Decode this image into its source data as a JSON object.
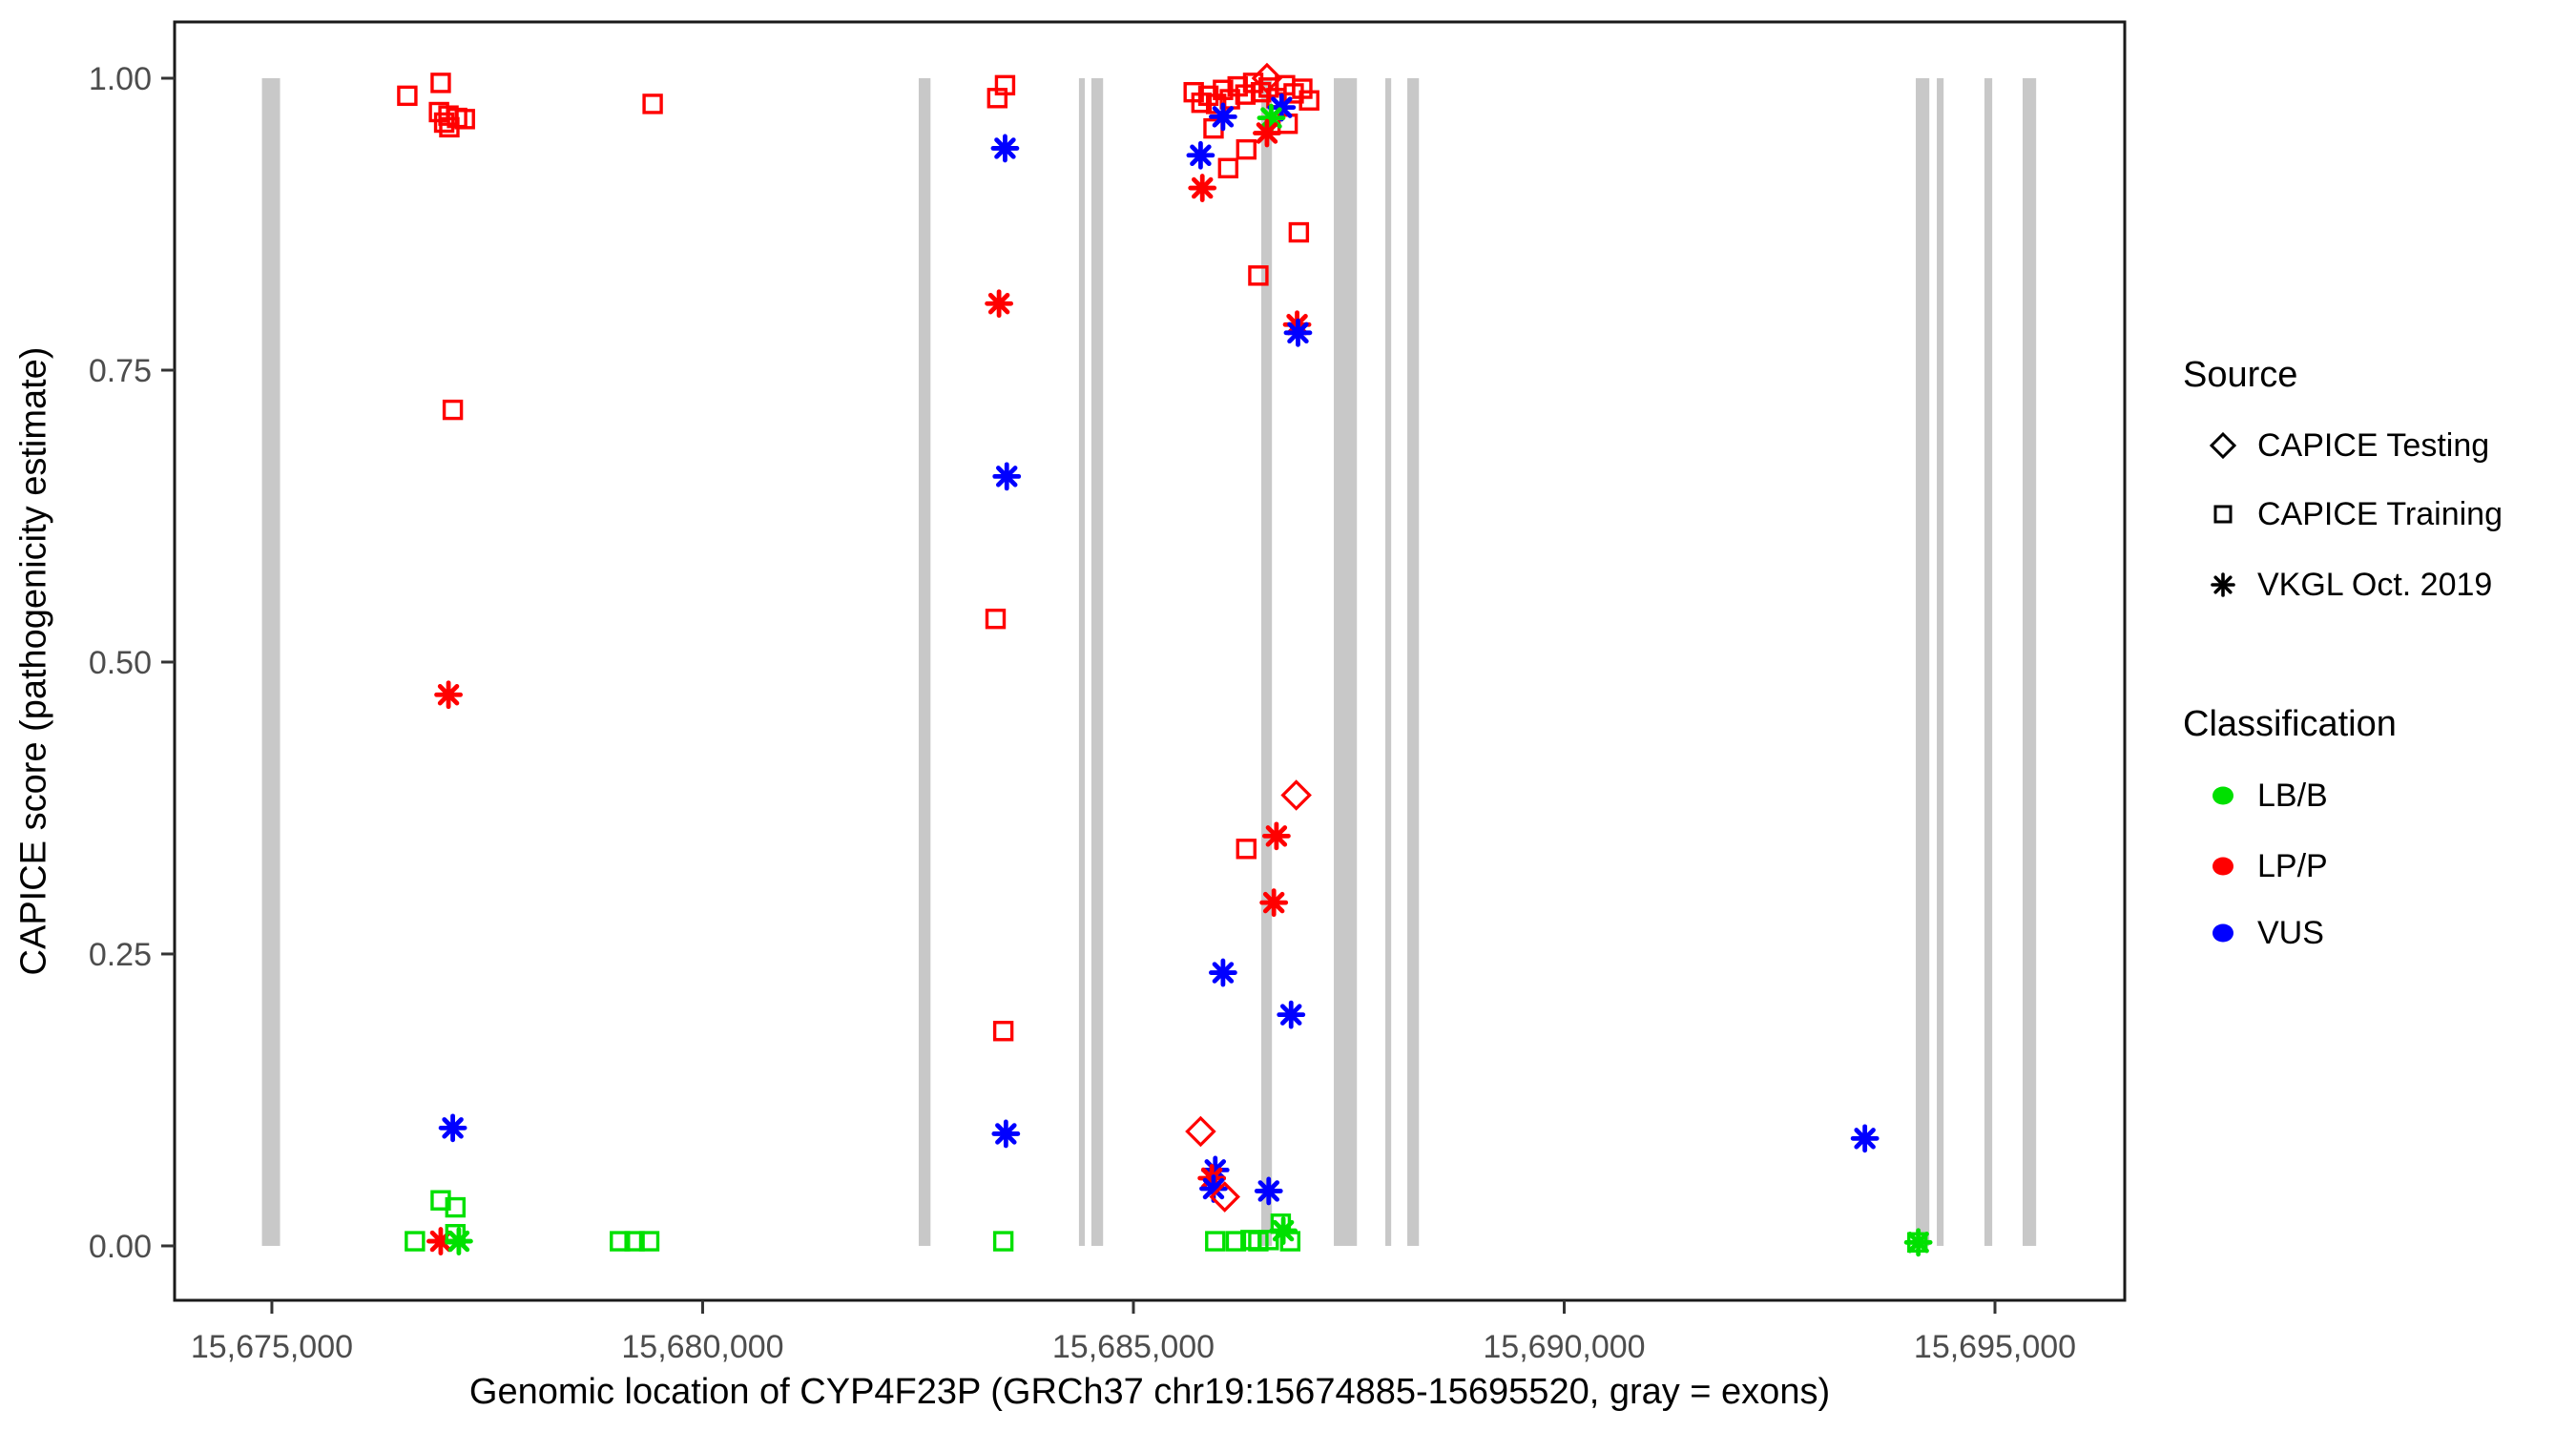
{
  "chart_data": {
    "type": "scatter",
    "xlabel": "Genomic location of CYP4F23P (GRCh37 chr19:15674885-15695520, gray = exons)",
    "ylabel": "CAPICE score (pathogenicity estimate)",
    "x_domain": [
      15673871,
      15696506
    ],
    "y_domain": [
      -0.0466,
      1.0482
    ],
    "x_ticks": [
      {
        "value": 15675000,
        "label": "15,675,000"
      },
      {
        "value": 15680000,
        "label": "15,680,000"
      },
      {
        "value": 15685000,
        "label": "15,685,000"
      },
      {
        "value": 15690000,
        "label": "15,690,000"
      },
      {
        "value": 15695000,
        "label": "15,695,000"
      }
    ],
    "y_ticks": [
      {
        "value": 0.0,
        "label": "0.00"
      },
      {
        "value": 0.25,
        "label": "0.25"
      },
      {
        "value": 0.5,
        "label": "0.50"
      },
      {
        "value": 0.75,
        "label": "0.75"
      },
      {
        "value": 1.0,
        "label": "1.00"
      }
    ],
    "exon_color": "#C8C8C8",
    "exon_y_span": [
      0,
      1
    ],
    "exons": [
      [
        15674885,
        15675095
      ],
      [
        15682508,
        15682645
      ],
      [
        15684368,
        15684436
      ],
      [
        15684512,
        15684648
      ],
      [
        15686484,
        15686608
      ],
      [
        15687326,
        15687594
      ],
      [
        15687924,
        15687992
      ],
      [
        15688179,
        15688314
      ],
      [
        15694081,
        15694238
      ],
      [
        15694325,
        15694404
      ],
      [
        15694878,
        15694968
      ],
      [
        15695321,
        15695478
      ]
    ],
    "class_colors": {
      "LB/B": "#00E000",
      "LP/P": "#FF0000",
      "VUS": "#0000FF"
    },
    "source_shapes": {
      "CAPICE Testing": "diamond",
      "CAPICE Training": "square",
      "VKGL Oct. 2019": "asterisk"
    },
    "points": [
      {
        "x": 15676572,
        "y": 0.985,
        "source": "CAPICE Training",
        "class": "LP/P"
      },
      {
        "x": 15676960,
        "y": 0.996,
        "source": "CAPICE Training",
        "class": "LP/P"
      },
      {
        "x": 15676940,
        "y": 0.971,
        "source": "CAPICE Training",
        "class": "LP/P"
      },
      {
        "x": 15677050,
        "y": 0.968,
        "source": "CAPICE Training",
        "class": "LP/P"
      },
      {
        "x": 15677150,
        "y": 0.966,
        "source": "CAPICE Training",
        "class": "LP/P"
      },
      {
        "x": 15677060,
        "y": 0.958,
        "source": "CAPICE Training",
        "class": "LP/P"
      },
      {
        "x": 15677240,
        "y": 0.965,
        "source": "CAPICE Training",
        "class": "LP/P"
      },
      {
        "x": 15677000,
        "y": 0.962,
        "source": "CAPICE Training",
        "class": "LP/P"
      },
      {
        "x": 15679420,
        "y": 0.978,
        "source": "CAPICE Training",
        "class": "LP/P"
      },
      {
        "x": 15677100,
        "y": 0.716,
        "source": "CAPICE Training",
        "class": "LP/P"
      },
      {
        "x": 15677050,
        "y": 0.472,
        "source": "VKGL Oct. 2019",
        "class": "LP/P"
      },
      {
        "x": 15677100,
        "y": 0.101,
        "source": "VKGL Oct. 2019",
        "class": "VUS"
      },
      {
        "x": 15676960,
        "y": 0.039,
        "source": "CAPICE Training",
        "class": "LB/B"
      },
      {
        "x": 15677130,
        "y": 0.033,
        "source": "CAPICE Training",
        "class": "LB/B"
      },
      {
        "x": 15676660,
        "y": 0.004,
        "source": "CAPICE Training",
        "class": "LB/B"
      },
      {
        "x": 15676960,
        "y": 0.004,
        "source": "VKGL Oct. 2019",
        "class": "LP/P"
      },
      {
        "x": 15677130,
        "y": 0.01,
        "source": "CAPICE Training",
        "class": "LB/B"
      },
      {
        "x": 15677170,
        "y": 0.004,
        "source": "VKGL Oct. 2019",
        "class": "LB/B"
      },
      {
        "x": 15679040,
        "y": 0.004,
        "source": "CAPICE Training",
        "class": "LB/B"
      },
      {
        "x": 15679210,
        "y": 0.004,
        "source": "CAPICE Training",
        "class": "LB/B"
      },
      {
        "x": 15679380,
        "y": 0.004,
        "source": "CAPICE Training",
        "class": "LB/B"
      },
      {
        "x": 15683420,
        "y": 0.983,
        "source": "CAPICE Training",
        "class": "LP/P"
      },
      {
        "x": 15683510,
        "y": 0.994,
        "source": "CAPICE Training",
        "class": "LP/P"
      },
      {
        "x": 15683510,
        "y": 0.94,
        "source": "VKGL Oct. 2019",
        "class": "VUS"
      },
      {
        "x": 15683440,
        "y": 0.807,
        "source": "VKGL Oct. 2019",
        "class": "LP/P"
      },
      {
        "x": 15683530,
        "y": 0.659,
        "source": "VKGL Oct. 2019",
        "class": "VUS"
      },
      {
        "x": 15683400,
        "y": 0.537,
        "source": "CAPICE Training",
        "class": "LP/P"
      },
      {
        "x": 15683490,
        "y": 0.184,
        "source": "CAPICE Training",
        "class": "LP/P"
      },
      {
        "x": 15683520,
        "y": 0.096,
        "source": "VKGL Oct. 2019",
        "class": "VUS"
      },
      {
        "x": 15683490,
        "y": 0.004,
        "source": "CAPICE Training",
        "class": "LB/B"
      },
      {
        "x": 15685700,
        "y": 0.988,
        "source": "CAPICE Training",
        "class": "LP/P"
      },
      {
        "x": 15685790,
        "y": 0.979,
        "source": "CAPICE Training",
        "class": "LP/P"
      },
      {
        "x": 15685870,
        "y": 0.985,
        "source": "CAPICE Training",
        "class": "LP/P"
      },
      {
        "x": 15685960,
        "y": 0.978,
        "source": "CAPICE Training",
        "class": "LP/P"
      },
      {
        "x": 15686040,
        "y": 0.99,
        "source": "CAPICE Training",
        "class": "LP/P"
      },
      {
        "x": 15686120,
        "y": 0.982,
        "source": "CAPICE Training",
        "class": "LP/P"
      },
      {
        "x": 15686210,
        "y": 0.993,
        "source": "CAPICE Training",
        "class": "LP/P"
      },
      {
        "x": 15686300,
        "y": 0.986,
        "source": "CAPICE Training",
        "class": "LP/P"
      },
      {
        "x": 15686390,
        "y": 0.996,
        "source": "CAPICE Training",
        "class": "LP/P"
      },
      {
        "x": 15686480,
        "y": 0.988,
        "source": "CAPICE Training",
        "class": "LP/P"
      },
      {
        "x": 15686570,
        "y": 0.992,
        "source": "CAPICE Training",
        "class": "LP/P"
      },
      {
        "x": 15686660,
        "y": 0.983,
        "source": "CAPICE Training",
        "class": "LP/P"
      },
      {
        "x": 15686760,
        "y": 0.994,
        "source": "CAPICE Training",
        "class": "LP/P"
      },
      {
        "x": 15686860,
        "y": 0.987,
        "source": "CAPICE Training",
        "class": "LP/P"
      },
      {
        "x": 15686960,
        "y": 0.991,
        "source": "CAPICE Training",
        "class": "LP/P"
      },
      {
        "x": 15687040,
        "y": 0.981,
        "source": "CAPICE Training",
        "class": "LP/P"
      },
      {
        "x": 15686550,
        "y": 1.0,
        "source": "CAPICE Testing",
        "class": "LP/P"
      },
      {
        "x": 15685930,
        "y": 0.957,
        "source": "CAPICE Training",
        "class": "LP/P"
      },
      {
        "x": 15686790,
        "y": 0.961,
        "source": "CAPICE Training",
        "class": "LP/P"
      },
      {
        "x": 15686310,
        "y": 0.939,
        "source": "CAPICE Training",
        "class": "LP/P"
      },
      {
        "x": 15686100,
        "y": 0.923,
        "source": "CAPICE Training",
        "class": "LP/P"
      },
      {
        "x": 15686040,
        "y": 0.967,
        "source": "VKGL Oct. 2019",
        "class": "VUS"
      },
      {
        "x": 15686720,
        "y": 0.975,
        "source": "VKGL Oct. 2019",
        "class": "VUS"
      },
      {
        "x": 15686600,
        "y": 0.966,
        "source": "VKGL Oct. 2019",
        "class": "LB/B"
      },
      {
        "x": 15686550,
        "y": 0.953,
        "source": "VKGL Oct. 2019",
        "class": "LP/P"
      },
      {
        "x": 15685780,
        "y": 0.934,
        "source": "VKGL Oct. 2019",
        "class": "VUS"
      },
      {
        "x": 15685800,
        "y": 0.906,
        "source": "VKGL Oct. 2019",
        "class": "LP/P"
      },
      {
        "x": 15686920,
        "y": 0.868,
        "source": "CAPICE Training",
        "class": "LP/P"
      },
      {
        "x": 15686450,
        "y": 0.831,
        "source": "CAPICE Training",
        "class": "LP/P"
      },
      {
        "x": 15686900,
        "y": 0.789,
        "source": "VKGL Oct. 2019",
        "class": "LP/P"
      },
      {
        "x": 15686910,
        "y": 0.782,
        "source": "VKGL Oct. 2019",
        "class": "VUS"
      },
      {
        "x": 15686890,
        "y": 0.386,
        "source": "CAPICE Testing",
        "class": "LP/P"
      },
      {
        "x": 15686660,
        "y": 0.351,
        "source": "VKGL Oct. 2019",
        "class": "LP/P"
      },
      {
        "x": 15686310,
        "y": 0.34,
        "source": "CAPICE Training",
        "class": "LP/P"
      },
      {
        "x": 15686630,
        "y": 0.294,
        "source": "VKGL Oct. 2019",
        "class": "LP/P"
      },
      {
        "x": 15686040,
        "y": 0.234,
        "source": "VKGL Oct. 2019",
        "class": "VUS"
      },
      {
        "x": 15686830,
        "y": 0.198,
        "source": "VKGL Oct. 2019",
        "class": "VUS"
      },
      {
        "x": 15685780,
        "y": 0.098,
        "source": "CAPICE Testing",
        "class": "LP/P"
      },
      {
        "x": 15685950,
        "y": 0.065,
        "source": "VKGL Oct. 2019",
        "class": "VUS"
      },
      {
        "x": 15685910,
        "y": 0.058,
        "source": "VKGL Oct. 2019",
        "class": "LP/P"
      },
      {
        "x": 15685930,
        "y": 0.049,
        "source": "VKGL Oct. 2019",
        "class": "VUS"
      },
      {
        "x": 15686060,
        "y": 0.042,
        "source": "CAPICE Testing",
        "class": "LP/P"
      },
      {
        "x": 15686570,
        "y": 0.047,
        "source": "VKGL Oct. 2019",
        "class": "VUS"
      },
      {
        "x": 15685950,
        "y": 0.004,
        "source": "CAPICE Training",
        "class": "LB/B"
      },
      {
        "x": 15686190,
        "y": 0.004,
        "source": "CAPICE Training",
        "class": "LB/B"
      },
      {
        "x": 15686360,
        "y": 0.005,
        "source": "CAPICE Training",
        "class": "LB/B"
      },
      {
        "x": 15686450,
        "y": 0.004,
        "source": "CAPICE Training",
        "class": "LB/B"
      },
      {
        "x": 15686570,
        "y": 0.005,
        "source": "CAPICE Training",
        "class": "LB/B"
      },
      {
        "x": 15686710,
        "y": 0.019,
        "source": "CAPICE Training",
        "class": "LB/B"
      },
      {
        "x": 15686740,
        "y": 0.013,
        "source": "VKGL Oct. 2019",
        "class": "LB/B"
      },
      {
        "x": 15686820,
        "y": 0.004,
        "source": "CAPICE Training",
        "class": "LB/B"
      },
      {
        "x": 15693490,
        "y": 0.092,
        "source": "VKGL Oct. 2019",
        "class": "VUS"
      },
      {
        "x": 15694100,
        "y": 0.003,
        "source": "CAPICE Training",
        "class": "LB/B"
      },
      {
        "x": 15694110,
        "y": 0.003,
        "source": "VKGL Oct. 2019",
        "class": "LB/B"
      }
    ]
  },
  "legend": {
    "source_title": "Source",
    "source_items": [
      {
        "label": "CAPICE Testing",
        "shape": "diamond"
      },
      {
        "label": "CAPICE Training",
        "shape": "square"
      },
      {
        "label": "VKGL Oct. 2019",
        "shape": "asterisk"
      }
    ],
    "classification_title": "Classification",
    "classification_items": [
      {
        "label": "LB/B",
        "color": "#00E000"
      },
      {
        "label": "LP/P",
        "color": "#FF0000"
      },
      {
        "label": "VUS",
        "color": "#0000FF"
      }
    ]
  }
}
